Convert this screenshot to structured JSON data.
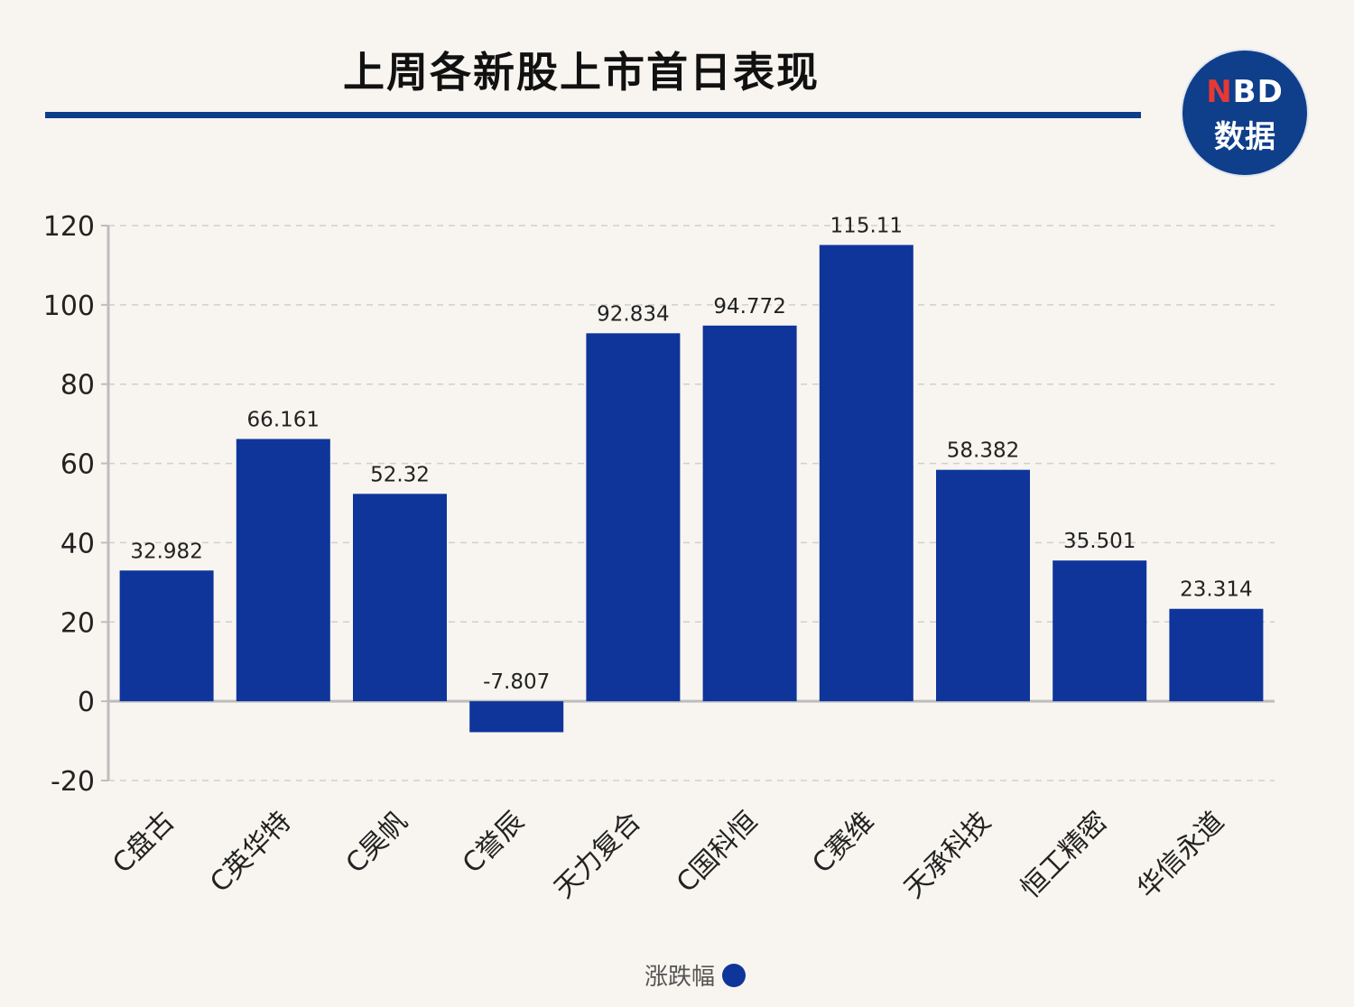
{
  "header": {
    "title": "上周各新股上市首日表现",
    "logo_line1_n": "N",
    "logo_line1_rest": "BD",
    "logo_line2": "数据"
  },
  "colors": {
    "bar": "#0f359b",
    "accent": "#0f3e8a",
    "logo_red": "#e53935"
  },
  "chart_data": {
    "type": "bar",
    "categories": [
      "C盘古",
      "C英华特",
      "C昊帆",
      "C誉辰",
      "天力复合",
      "C国科恒",
      "C赛维",
      "天承科技",
      "恒工精密",
      "华信永道"
    ],
    "series": [
      {
        "name": "涨跌幅",
        "values": [
          32.982,
          66.161,
          52.32,
          -7.807,
          92.834,
          94.772,
          115.11,
          58.382,
          35.501,
          23.314
        ],
        "labels": [
          "32.982",
          "66.161",
          "52.32",
          "-7.807",
          "92.834",
          "94.772",
          "115.11",
          "58.382",
          "35.501",
          "23.314"
        ]
      }
    ],
    "ylim": [
      -20,
      120
    ],
    "yticks": [
      "-20",
      "0",
      "20",
      "40",
      "60",
      "80",
      "100",
      "120"
    ],
    "grid": true,
    "legend": "bottom-center"
  }
}
